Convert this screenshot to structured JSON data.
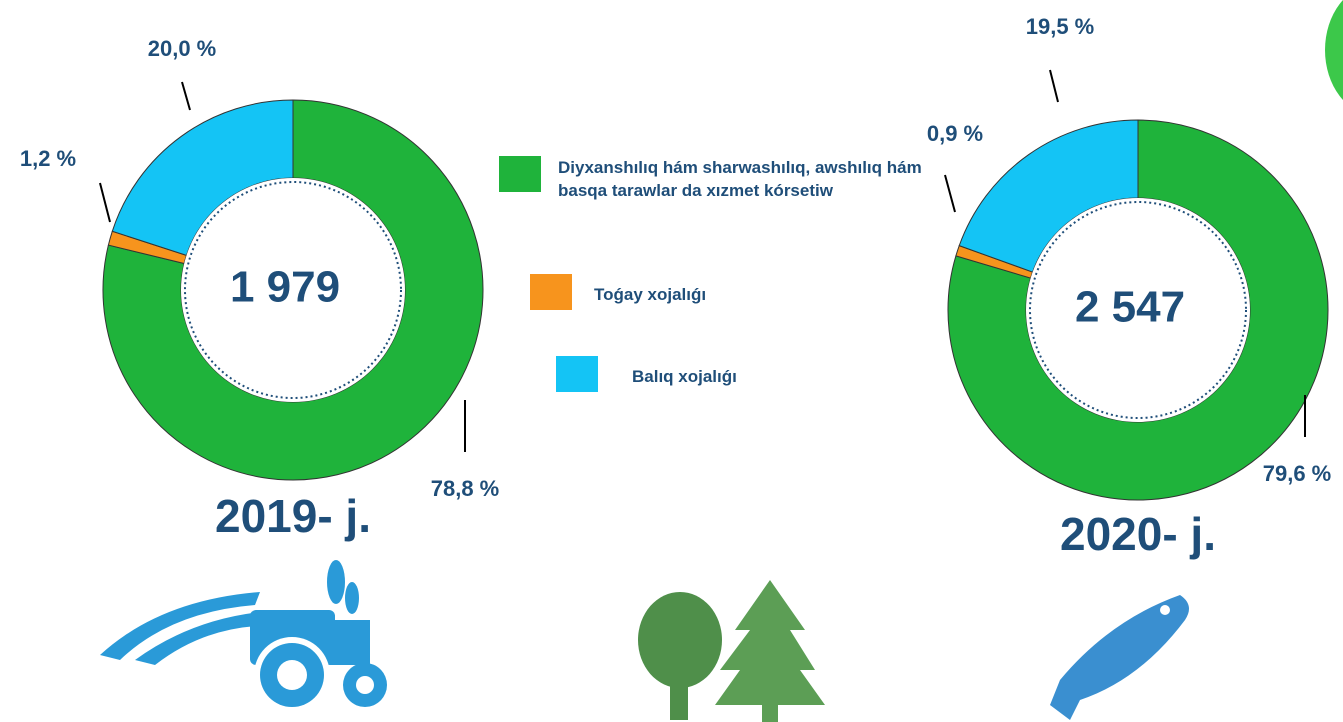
{
  "chart_data": [
    {
      "type": "donut",
      "title": "2019- j.",
      "center_label": "1 979",
      "categories": [
        "Diyxanshılıq hám sharwashılıq, awshılıq hám basqa tarawlar da xızmet  kórsetiw",
        "Toǵay xojalıǵı",
        "Balıq xojalıǵı"
      ],
      "colors": [
        "#1fb33b",
        "#f7941d",
        "#14c4f5"
      ],
      "values": [
        78.8,
        1.2,
        20.0
      ],
      "value_labels": [
        "78,8 %",
        "1,2 %",
        "20,0 %"
      ]
    },
    {
      "type": "donut",
      "title": "2020- j.",
      "center_label": "2 547",
      "colors": [
        "#1fb33b",
        "#f7941d",
        "#14c4f5"
      ],
      "values": [
        79.6,
        0.9,
        19.5
      ],
      "value_labels": [
        "79,6 %",
        "0,9 %",
        "19,5 %"
      ]
    }
  ]
}
